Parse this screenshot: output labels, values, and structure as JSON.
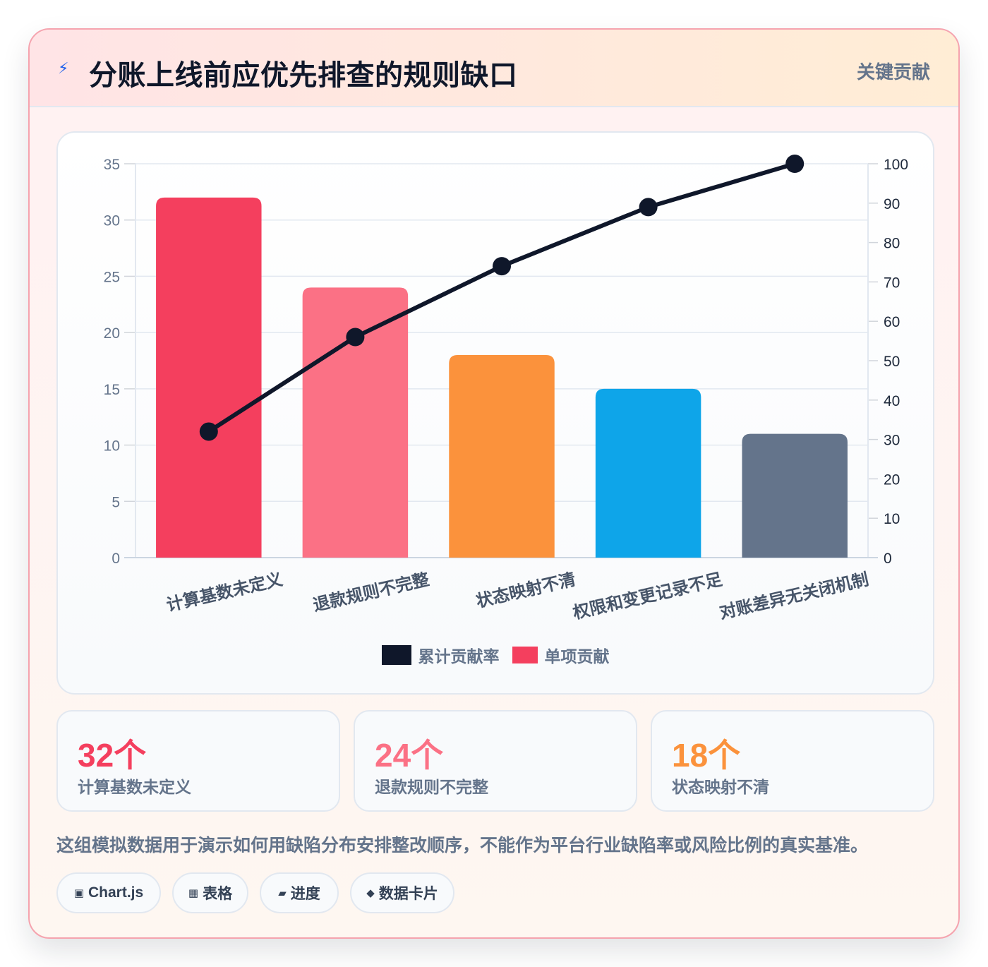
{
  "header": {
    "icon": "lightning-icon",
    "title": "分账上线前应优先排查的规则缺口",
    "badge": "关键贡献"
  },
  "chart_data": {
    "type": "bar",
    "categories": [
      "计算基数未定义",
      "退款规则不完整",
      "状态映射不清",
      "权限和变更记录不足",
      "对账差异无关闭机制"
    ],
    "series": [
      {
        "name": "单项贡献",
        "type": "bar",
        "axis": "left",
        "values": [
          32,
          24,
          18,
          15,
          11
        ],
        "colors": [
          "#f43f5e",
          "#fb7185",
          "#fb923c",
          "#0ea5e9",
          "#64748b"
        ]
      },
      {
        "name": "累计贡献率",
        "type": "line",
        "axis": "right",
        "values": [
          32,
          56,
          74,
          89,
          100
        ],
        "color": "#0f172a"
      }
    ],
    "y_left": {
      "min": 0,
      "max": 35,
      "ticks": [
        0,
        5,
        10,
        15,
        20,
        25,
        30,
        35
      ]
    },
    "y_right": {
      "min": 0,
      "max": 100,
      "ticks": [
        0,
        10,
        20,
        30,
        40,
        50,
        60,
        70,
        80,
        90,
        100
      ]
    },
    "grid": true,
    "legend_position": "bottom",
    "legend": [
      {
        "label": "累计贡献率",
        "color": "#0f172a"
      },
      {
        "label": "单项贡献",
        "color": "#f43f5e"
      }
    ]
  },
  "stats": [
    {
      "value": "32个",
      "label": "计算基数未定义",
      "color": "#f43f5e"
    },
    {
      "value": "24个",
      "label": "退款规则不完整",
      "color": "#fb7185"
    },
    {
      "value": "18个",
      "label": "状态映射不清",
      "color": "#fb923c"
    }
  ],
  "note": "这组模拟数据用于演示如何用缺陷分布安排整改顺序，不能作为平台行业缺陷率或风险比例的真实基准。",
  "tags": [
    {
      "icon": "▣",
      "label": "Chart.js"
    },
    {
      "icon": "▦",
      "label": "表格"
    },
    {
      "icon": "▰",
      "label": "进度"
    },
    {
      "icon": "◆",
      "label": "数据卡片"
    }
  ]
}
